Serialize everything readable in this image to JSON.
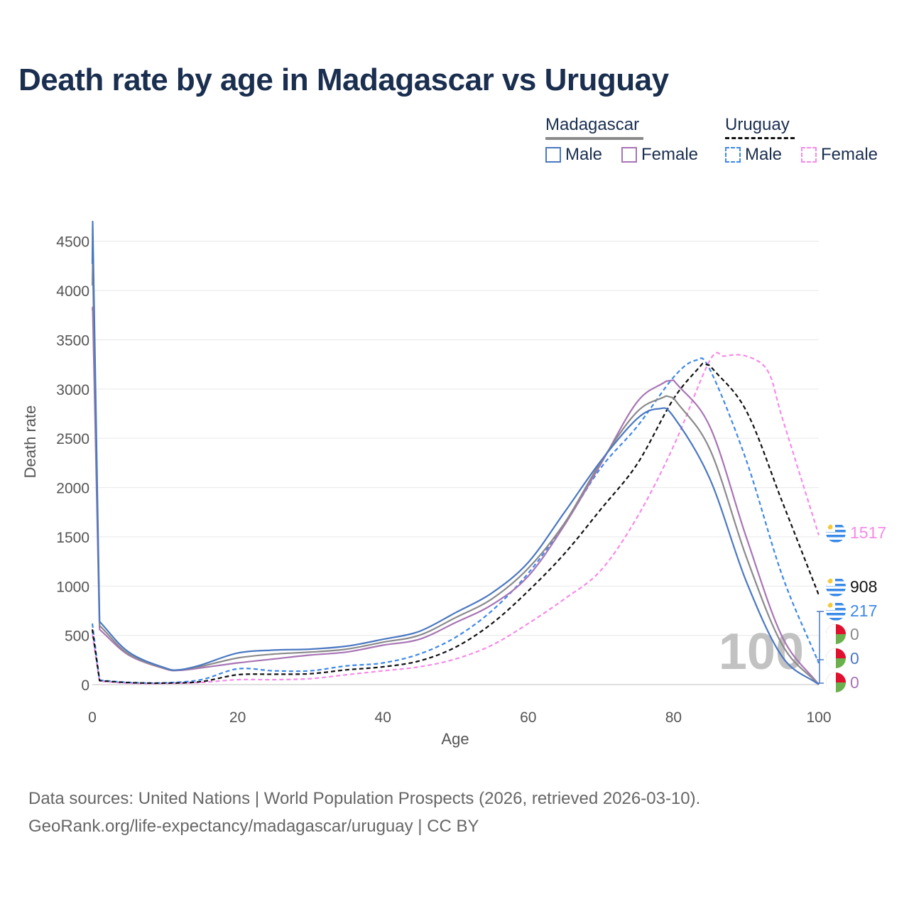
{
  "title": "Death rate by age in Madagascar vs Uruguay",
  "legend": {
    "groups": [
      {
        "name": "Madagascar",
        "style": "solid",
        "color": "#8a8a8a"
      },
      {
        "name": "Uruguay",
        "style": "dashed",
        "color": "#111111"
      }
    ],
    "items": [
      {
        "label": "Male",
        "country": "Madagascar",
        "color": "#4a78c2",
        "dashed": false
      },
      {
        "label": "Female",
        "country": "Madagascar",
        "color": "#a874b5",
        "dashed": false
      },
      {
        "label": "Male",
        "country": "Uruguay",
        "color": "#3e88e8",
        "dashed": true
      },
      {
        "label": "Female",
        "country": "Uruguay",
        "color": "#f78ae8",
        "dashed": true
      }
    ]
  },
  "watermark_age": "100",
  "sources": {
    "line1": "Data sources: United Nations | World Population Prospects (2026, retrieved 2026-03-10).",
    "line2": "GeoRank.org/life-expectancy/madagascar/uruguay | CC BY"
  },
  "chart_data": {
    "type": "line",
    "title": "Death rate by age in Madagascar vs Uruguay",
    "xlabel": "Age",
    "ylabel": "Death rate",
    "xlim": [
      0,
      100
    ],
    "ylim": [
      0,
      4700
    ],
    "xticks": [
      0,
      20,
      40,
      60,
      80,
      100
    ],
    "yticks": [
      0,
      500,
      1000,
      1500,
      2000,
      2500,
      3000,
      3500,
      4000,
      4500
    ],
    "grid": true,
    "series": [
      {
        "name": "Madagascar Male",
        "country": "Madagascar",
        "sex": "Male",
        "color": "#4a78c2",
        "dashed": false,
        "x": [
          0,
          0.05,
          1,
          5,
          10,
          12,
          15,
          20,
          25,
          30,
          35,
          40,
          45,
          50,
          55,
          60,
          65,
          70,
          75,
          78,
          80,
          85,
          90,
          95,
          100
        ],
        "y": [
          4270,
          4700,
          640,
          330,
          170,
          150,
          200,
          320,
          350,
          360,
          390,
          460,
          540,
          730,
          930,
          1240,
          1750,
          2270,
          2700,
          2800,
          2720,
          2090,
          1050,
          280,
          0
        ]
      },
      {
        "name": "Madagascar Total",
        "country": "Madagascar",
        "sex": "Total",
        "color": "#8a8a8a",
        "dashed": false,
        "x": [
          0,
          0.05,
          1,
          5,
          10,
          12,
          15,
          20,
          25,
          30,
          35,
          40,
          45,
          50,
          55,
          60,
          65,
          70,
          75,
          79,
          80,
          85,
          90,
          95,
          100
        ],
        "y": [
          4050,
          4270,
          600,
          310,
          165,
          150,
          185,
          270,
          310,
          330,
          360,
          430,
          500,
          680,
          870,
          1180,
          1640,
          2260,
          2770,
          2930,
          2910,
          2390,
          1300,
          400,
          0
        ]
      },
      {
        "name": "Madagascar Female",
        "country": "Madagascar",
        "sex": "Female",
        "color": "#a874b5",
        "dashed": false,
        "x": [
          0,
          0.05,
          1,
          5,
          10,
          12,
          15,
          20,
          25,
          30,
          35,
          40,
          45,
          50,
          55,
          60,
          65,
          70,
          75,
          79,
          80,
          85,
          90,
          95,
          100
        ],
        "y": [
          3800,
          3830,
          560,
          300,
          160,
          145,
          170,
          220,
          260,
          300,
          330,
          400,
          460,
          630,
          810,
          1100,
          1620,
          2240,
          2870,
          3080,
          3090,
          2620,
          1500,
          480,
          0
        ]
      },
      {
        "name": "Uruguay Total",
        "country": "Uruguay",
        "sex": "Total",
        "color": "#111111",
        "dashed": true,
        "x": [
          0,
          1,
          5,
          10,
          15,
          20,
          25,
          30,
          35,
          40,
          45,
          50,
          55,
          60,
          65,
          70,
          75,
          80,
          84,
          85,
          90,
          95,
          100
        ],
        "y": [
          560,
          40,
          20,
          15,
          30,
          100,
          105,
          110,
          150,
          180,
          240,
          380,
          620,
          950,
          1330,
          1780,
          2240,
          2900,
          3260,
          3240,
          2780,
          1850,
          908
        ]
      },
      {
        "name": "Uruguay Male",
        "country": "Uruguay",
        "sex": "Male",
        "color": "#3e88e8",
        "dashed": true,
        "x": [
          0,
          1,
          5,
          10,
          15,
          20,
          25,
          30,
          35,
          40,
          45,
          50,
          55,
          60,
          65,
          70,
          75,
          80,
          83,
          85,
          90,
          95,
          100
        ],
        "y": [
          620,
          45,
          22,
          18,
          50,
          160,
          140,
          140,
          190,
          220,
          310,
          480,
          750,
          1130,
          1630,
          2200,
          2620,
          3120,
          3290,
          3200,
          2280,
          1100,
          217
        ]
      },
      {
        "name": "Uruguay Female",
        "country": "Uruguay",
        "sex": "Female",
        "color": "#f78ae8",
        "dashed": true,
        "x": [
          0,
          1,
          5,
          10,
          15,
          20,
          25,
          30,
          35,
          40,
          45,
          50,
          55,
          60,
          65,
          70,
          75,
          80,
          85,
          87,
          90,
          93,
          95,
          100
        ],
        "y": [
          510,
          35,
          15,
          12,
          22,
          50,
          50,
          60,
          100,
          140,
          180,
          260,
          400,
          620,
          870,
          1160,
          1700,
          2420,
          3290,
          3335,
          3335,
          3180,
          2700,
          1517
        ]
      }
    ],
    "end_labels": [
      {
        "country": "Uruguay",
        "value": "1517",
        "color": "#f78ae8"
      },
      {
        "country": "Uruguay",
        "value": "908",
        "color": "#111111"
      },
      {
        "country": "Uruguay",
        "value": "217",
        "color": "#3e88e8"
      },
      {
        "country": "Madagascar",
        "value": "0",
        "color": "#8a8a8a"
      },
      {
        "country": "Madagascar",
        "value": "0",
        "color": "#4a78c2"
      },
      {
        "country": "Madagascar",
        "value": "0",
        "color": "#a874b5"
      }
    ]
  }
}
